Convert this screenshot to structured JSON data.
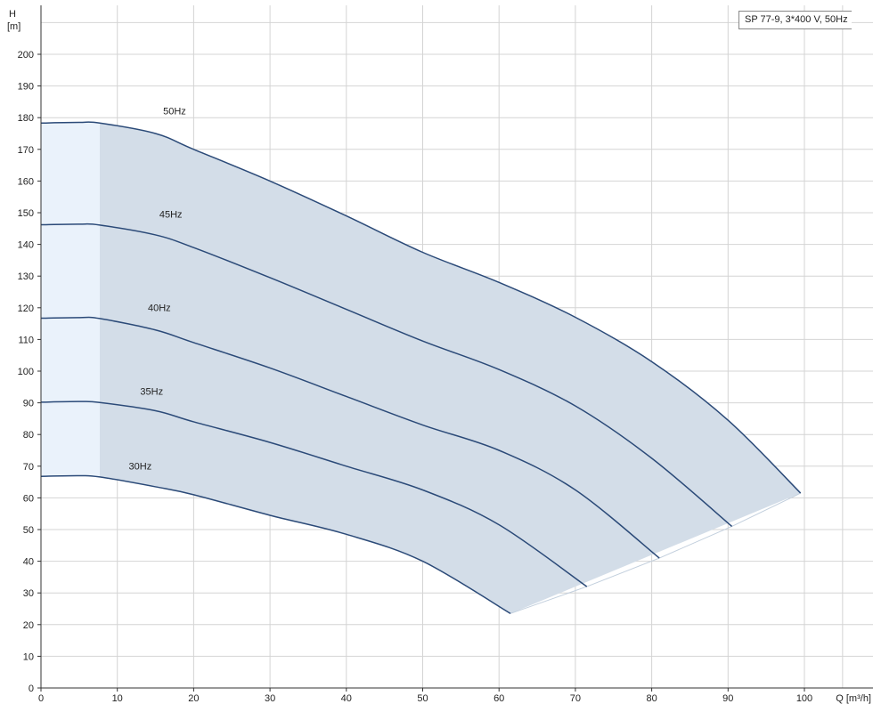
{
  "chart_data": {
    "type": "line",
    "legend_text": "SP 77-9, 3*400 V, 50Hz",
    "ylabel": [
      "H",
      "[m]"
    ],
    "xlabel": "Q [m³/h]",
    "xlim": [
      0,
      105
    ],
    "ylim": [
      0,
      210
    ],
    "x_ticks": [
      0,
      10,
      20,
      30,
      40,
      50,
      60,
      70,
      80,
      90,
      100
    ],
    "y_ticks": [
      0,
      10,
      20,
      30,
      40,
      50,
      60,
      70,
      80,
      90,
      100,
      110,
      120,
      130,
      140,
      150,
      160,
      170,
      180,
      190,
      200
    ],
    "grid": true,
    "colors": {
      "curve": "#2b4a78",
      "fill": "#d3dde8",
      "fill_light": "#eaf2fb",
      "grid": "#d4d4d4"
    },
    "light_region_xmax": 7.7,
    "series": [
      {
        "name": "50Hz",
        "points": [
          [
            0,
            178.3
          ],
          [
            5,
            178.5
          ],
          [
            7.7,
            178.3
          ],
          [
            15,
            175
          ],
          [
            20,
            170
          ],
          [
            30,
            160
          ],
          [
            40,
            149
          ],
          [
            50,
            137.5
          ],
          [
            60,
            128
          ],
          [
            70,
            117
          ],
          [
            80,
            103
          ],
          [
            90,
            84.5
          ],
          [
            99.5,
            61.5
          ]
        ],
        "label_at": [
          16,
          181
        ]
      },
      {
        "name": "45Hz",
        "points": [
          [
            0,
            146.2
          ],
          [
            5,
            146.4
          ],
          [
            7.7,
            146.1
          ],
          [
            15,
            143
          ],
          [
            20,
            139
          ],
          [
            30,
            129.5
          ],
          [
            40,
            119.5
          ],
          [
            50,
            109.5
          ],
          [
            60,
            100.5
          ],
          [
            70,
            89
          ],
          [
            80,
            72.5
          ],
          [
            90.5,
            51
          ]
        ],
        "label_at": [
          15.5,
          148.5
        ]
      },
      {
        "name": "40Hz",
        "points": [
          [
            0,
            116.7
          ],
          [
            5,
            116.9
          ],
          [
            7.7,
            116.6
          ],
          [
            15,
            113
          ],
          [
            20,
            109
          ],
          [
            30,
            101
          ],
          [
            40,
            92
          ],
          [
            50,
            83
          ],
          [
            60,
            75
          ],
          [
            70,
            62.5
          ],
          [
            81,
            41
          ]
        ],
        "label_at": [
          14,
          119
        ]
      },
      {
        "name": "35Hz",
        "points": [
          [
            0,
            90.2
          ],
          [
            5,
            90.4
          ],
          [
            7.7,
            90.1
          ],
          [
            15,
            87.5
          ],
          [
            20,
            84
          ],
          [
            30,
            77.5
          ],
          [
            40,
            70
          ],
          [
            50,
            62.5
          ],
          [
            60,
            51.5
          ],
          [
            71.5,
            32
          ]
        ],
        "label_at": [
          13,
          92.5
        ]
      },
      {
        "name": "30Hz",
        "points": [
          [
            0,
            66.8
          ],
          [
            5,
            67
          ],
          [
            7.7,
            66.6
          ],
          [
            15,
            63.5
          ],
          [
            20,
            61
          ],
          [
            30,
            54.5
          ],
          [
            40,
            48.5
          ],
          [
            50,
            40
          ],
          [
            61.5,
            23.5
          ]
        ],
        "label_at": [
          11.5,
          69
        ]
      }
    ]
  }
}
